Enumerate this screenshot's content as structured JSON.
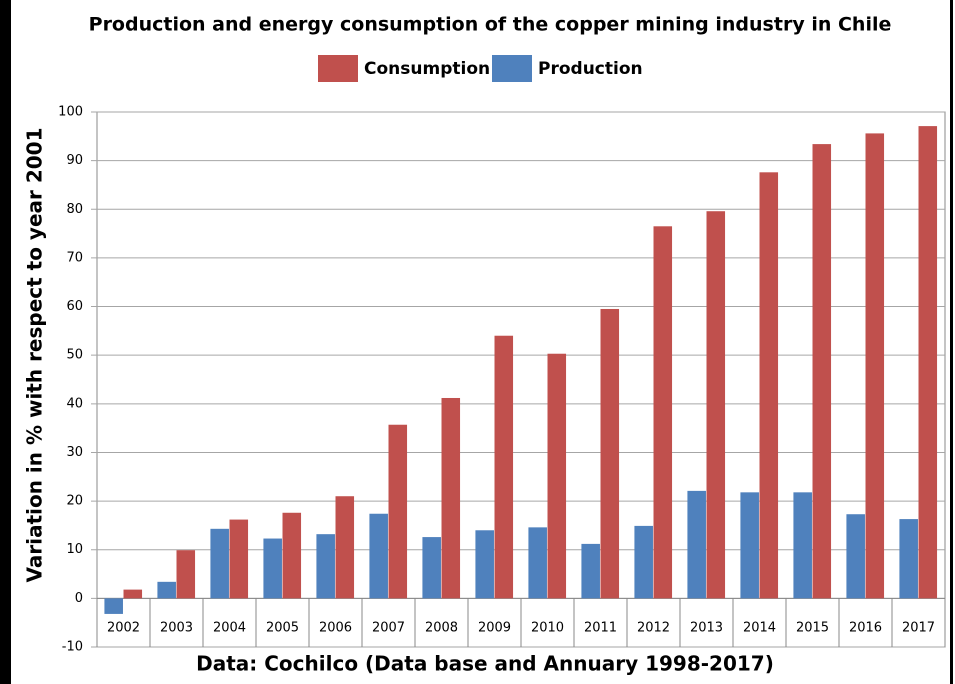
{
  "chart_data": {
    "type": "bar",
    "title": "Production and energy consumption of the copper mining industry in Chile",
    "y_label": "Variation in % with respect to year 2001",
    "x_label": "Data: Cochilco (Data base and Annuary 1998-2017)",
    "categories": [
      "2002",
      "2003",
      "2004",
      "2005",
      "2006",
      "2007",
      "2008",
      "2009",
      "2010",
      "2011",
      "2012",
      "2013",
      "2014",
      "2015",
      "2016",
      "2017"
    ],
    "series": [
      {
        "name": "Consumption",
        "color": "#c0504d",
        "values": [
          1.8,
          9.9,
          16.2,
          17.6,
          21.0,
          35.7,
          41.2,
          54.0,
          50.3,
          59.5,
          76.5,
          79.6,
          87.6,
          93.4,
          95.6,
          97.1
        ]
      },
      {
        "name": "Production",
        "color": "#4f81bd",
        "values": [
          -3.2,
          3.4,
          14.3,
          12.3,
          13.2,
          17.4,
          12.6,
          14.0,
          14.6,
          11.2,
          14.9,
          22.1,
          21.8,
          21.8,
          17.3,
          16.3
        ]
      }
    ],
    "ylim": [
      -10,
      100
    ],
    "yticks": [
      -10,
      0,
      10,
      20,
      30,
      40,
      50,
      60,
      70,
      80,
      90,
      100
    ],
    "grid": true,
    "legend": "top"
  }
}
